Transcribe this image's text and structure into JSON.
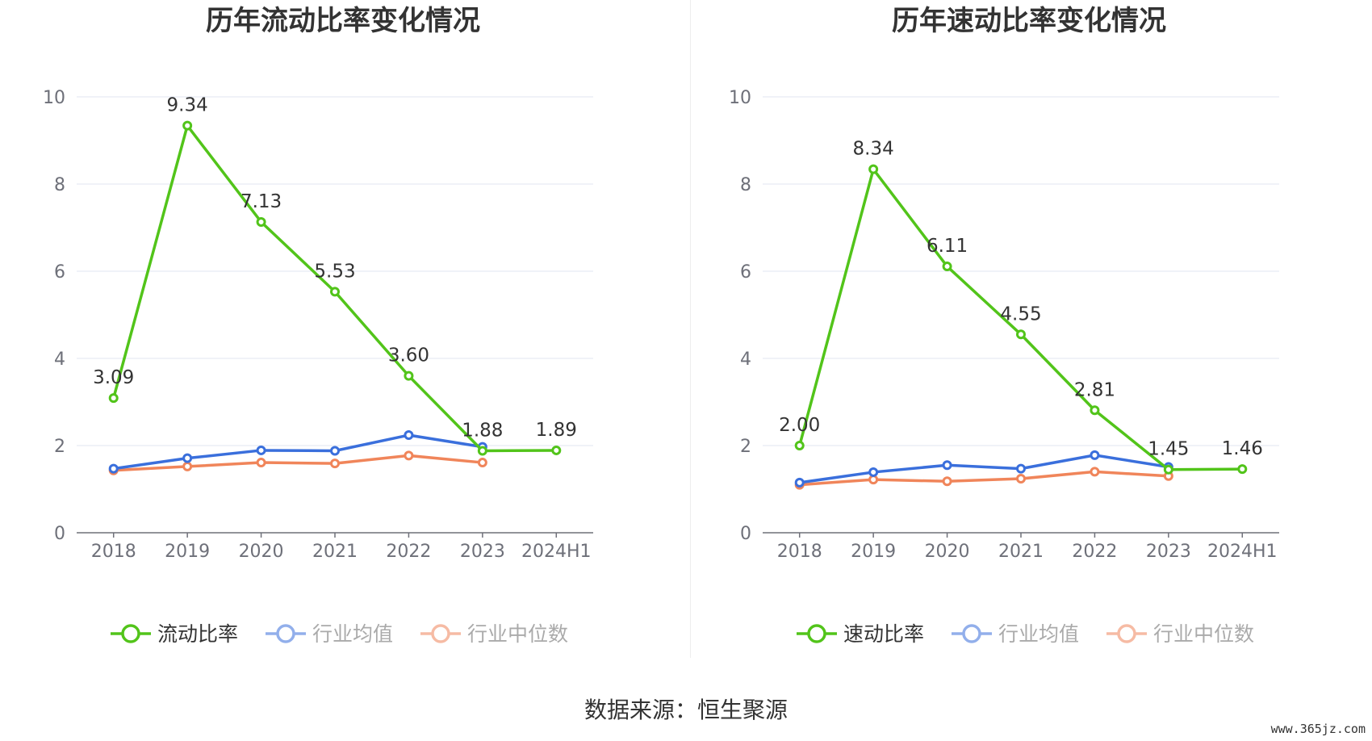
{
  "charts": [
    {
      "title": "历年流动比率变化情况",
      "chart_data": {
        "type": "line",
        "title": "历年流动比率变化情况",
        "categories": [
          "2018",
          "2019",
          "2020",
          "2021",
          "2022",
          "2023",
          "2024H1"
        ],
        "ylim": [
          0,
          10
        ],
        "yticks": [
          0,
          2,
          4,
          6,
          8,
          10
        ],
        "grid": true,
        "legend_position": "bottom",
        "series": [
          {
            "name": "流动比率",
            "color": "#52c41a",
            "labeled": true,
            "values": [
              3.09,
              9.34,
              7.13,
              5.53,
              3.6,
              1.88,
              1.89
            ],
            "labels": [
              "3.09",
              "9.34",
              "7.13",
              "5.53",
              "3.60",
              "1.88",
              "1.89"
            ]
          },
          {
            "name": "行业均值",
            "color": "#3a6fdc",
            "labeled": false,
            "values": [
              1.47,
              1.71,
              1.89,
              1.88,
              2.24,
              1.97,
              null
            ]
          },
          {
            "name": "行业中位数",
            "color": "#f0855a",
            "labeled": false,
            "values": [
              1.43,
              1.52,
              1.61,
              1.59,
              1.77,
              1.61,
              null
            ]
          }
        ]
      }
    },
    {
      "title": "历年速动比率变化情况",
      "chart_data": {
        "type": "line",
        "title": "历年速动比率变化情况",
        "categories": [
          "2018",
          "2019",
          "2020",
          "2021",
          "2022",
          "2023",
          "2024H1"
        ],
        "ylim": [
          0,
          10
        ],
        "yticks": [
          0,
          2,
          4,
          6,
          8,
          10
        ],
        "grid": true,
        "legend_position": "bottom",
        "series": [
          {
            "name": "速动比率",
            "color": "#52c41a",
            "labeled": true,
            "values": [
              2.0,
              8.34,
              6.11,
              4.55,
              2.81,
              1.45,
              1.46
            ],
            "labels": [
              "2.00",
              "8.34",
              "6.11",
              "4.55",
              "2.81",
              "1.45",
              "1.46"
            ]
          },
          {
            "name": "行业均值",
            "color": "#3a6fdc",
            "labeled": false,
            "values": [
              1.15,
              1.39,
              1.55,
              1.47,
              1.78,
              1.51,
              null
            ]
          },
          {
            "name": "行业中位数",
            "color": "#f0855a",
            "labeled": false,
            "values": [
              1.1,
              1.22,
              1.18,
              1.24,
              1.4,
              1.3,
              null
            ]
          }
        ]
      }
    }
  ],
  "source_text": "数据来源：恒生聚源",
  "watermark": "www.365jz.com"
}
